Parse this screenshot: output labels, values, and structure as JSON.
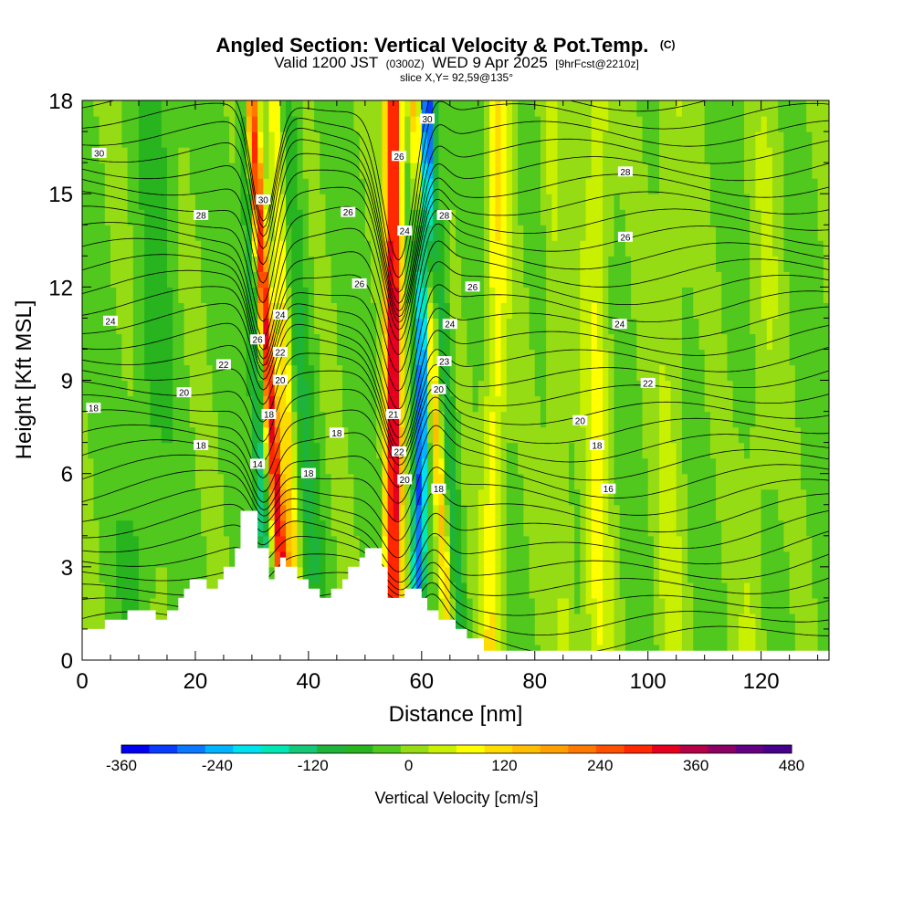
{
  "title": {
    "main": "Angled Section: Vertical Velocity & Pot.Temp.",
    "copyright": "(C)",
    "valid_prefix": "Valid 1200 JST",
    "valid_utc": "(0300Z)",
    "valid_date": "WED 9 Apr 2025",
    "forecast": "[9hrFcst@2210z]",
    "slice": "slice X,Y= 92,59@135°"
  },
  "chart_data": {
    "type": "heatmap",
    "xlabel": "Distance [nm]",
    "ylabel": "Height [Kft MSL]",
    "xlim": [
      0,
      132
    ],
    "ylim": [
      0,
      18
    ],
    "xticks": [
      0,
      20,
      40,
      60,
      80,
      100,
      120
    ],
    "yticks": [
      0,
      3,
      6,
      9,
      12,
      15,
      18
    ],
    "colorbar": {
      "title": "Vertical Velocity [cm/s]",
      "min": -360,
      "max": 480,
      "step": 40,
      "tick_labels": [
        "-360",
        "-240",
        "-120",
        "0",
        "120",
        "240",
        "360",
        "480"
      ],
      "tick_values": [
        -360,
        -240,
        -120,
        0,
        120,
        240,
        360,
        480
      ],
      "colors": [
        "#0000f0",
        "#0a3cff",
        "#0a78ff",
        "#00b4ff",
        "#00e1f0",
        "#00e6b4",
        "#14c878",
        "#1eb43c",
        "#28b41e",
        "#50c81e",
        "#96dc14",
        "#c8f000",
        "#ffff00",
        "#ffdc00",
        "#ffbe00",
        "#ffa000",
        "#ff7800",
        "#ff5000",
        "#ff2800",
        "#e6001e",
        "#b40046",
        "#8c0064",
        "#640082",
        "#46008c"
      ]
    },
    "terrain_kft": [
      [
        0,
        1.0
      ],
      [
        4,
        1.0
      ],
      [
        4,
        1.3
      ],
      [
        8,
        1.3
      ],
      [
        8,
        1.6
      ],
      [
        13,
        1.6
      ],
      [
        13,
        1.3
      ],
      [
        15,
        1.3
      ],
      [
        15,
        1.6
      ],
      [
        17,
        1.6
      ],
      [
        17,
        2.0
      ],
      [
        18,
        2.0
      ],
      [
        18,
        2.3
      ],
      [
        19,
        2.3
      ],
      [
        19,
        2.6
      ],
      [
        22,
        2.6
      ],
      [
        22,
        2.3
      ],
      [
        24,
        2.3
      ],
      [
        24,
        2.6
      ],
      [
        25,
        2.6
      ],
      [
        25,
        3.0
      ],
      [
        27,
        3.0
      ],
      [
        27,
        3.6
      ],
      [
        28,
        3.6
      ],
      [
        28,
        4.8
      ],
      [
        31,
        4.8
      ],
      [
        31,
        3.6
      ],
      [
        33,
        3.6
      ],
      [
        33,
        2.6
      ],
      [
        34,
        2.6
      ],
      [
        34,
        3.0
      ],
      [
        35,
        3.0
      ],
      [
        35,
        3.3
      ],
      [
        36,
        3.3
      ],
      [
        36,
        3.0
      ],
      [
        38,
        3.0
      ],
      [
        38,
        2.6
      ],
      [
        40,
        2.6
      ],
      [
        40,
        2.3
      ],
      [
        42,
        2.3
      ],
      [
        42,
        2.0
      ],
      [
        44,
        2.0
      ],
      [
        44,
        2.3
      ],
      [
        46,
        2.3
      ],
      [
        46,
        2.6
      ],
      [
        47,
        2.6
      ],
      [
        47,
        3.0
      ],
      [
        49,
        3.0
      ],
      [
        49,
        3.3
      ],
      [
        50,
        3.3
      ],
      [
        50,
        3.6
      ],
      [
        53,
        3.6
      ],
      [
        53,
        3.0
      ],
      [
        54,
        3.0
      ],
      [
        54,
        2.0
      ],
      [
        57,
        2.0
      ],
      [
        57,
        2.3
      ],
      [
        60,
        2.3
      ],
      [
        60,
        2.0
      ],
      [
        61,
        2.0
      ],
      [
        61,
        1.6
      ],
      [
        63,
        1.6
      ],
      [
        63,
        1.3
      ],
      [
        66,
        1.3
      ],
      [
        66,
        1.0
      ],
      [
        68,
        1.0
      ],
      [
        68,
        0.7
      ],
      [
        71,
        0.7
      ],
      [
        71,
        0.3
      ],
      [
        132,
        0.3
      ]
    ],
    "potential_temperature_labels": [
      {
        "text": "30",
        "x": 3,
        "y": 16.3
      },
      {
        "text": "28",
        "x": 21,
        "y": 14.3
      },
      {
        "text": "24",
        "x": 5,
        "y": 10.9
      },
      {
        "text": "22",
        "x": 25,
        "y": 9.5
      },
      {
        "text": "20",
        "x": 18,
        "y": 8.6
      },
      {
        "text": "18",
        "x": 2,
        "y": 8.1
      },
      {
        "text": "18",
        "x": 21,
        "y": 6.9
      },
      {
        "text": "30",
        "x": 32,
        "y": 14.8
      },
      {
        "text": "24",
        "x": 35,
        "y": 11.1
      },
      {
        "text": "26",
        "x": 31,
        "y": 10.3
      },
      {
        "text": "22",
        "x": 35,
        "y": 9.9
      },
      {
        "text": "20",
        "x": 35,
        "y": 9.0
      },
      {
        "text": "18",
        "x": 33,
        "y": 7.9
      },
      {
        "text": "14",
        "x": 31,
        "y": 6.3
      },
      {
        "text": "18",
        "x": 40,
        "y": 6.0
      },
      {
        "text": "18",
        "x": 45,
        "y": 7.3
      },
      {
        "text": "26",
        "x": 47,
        "y": 14.4
      },
      {
        "text": "26",
        "x": 49,
        "y": 12.1
      },
      {
        "text": "26",
        "x": 56,
        "y": 16.2
      },
      {
        "text": "24",
        "x": 57,
        "y": 13.8
      },
      {
        "text": "21",
        "x": 55,
        "y": 7.9
      },
      {
        "text": "22",
        "x": 56,
        "y": 6.7
      },
      {
        "text": "20",
        "x": 57,
        "y": 5.8
      },
      {
        "text": "30",
        "x": 61,
        "y": 17.4
      },
      {
        "text": "28",
        "x": 64,
        "y": 14.3
      },
      {
        "text": "26",
        "x": 69,
        "y": 12.0
      },
      {
        "text": "24",
        "x": 65,
        "y": 10.8
      },
      {
        "text": "23",
        "x": 64,
        "y": 9.6
      },
      {
        "text": "20",
        "x": 63,
        "y": 8.7
      },
      {
        "text": "18",
        "x": 63,
        "y": 5.5
      },
      {
        "text": "28",
        "x": 96,
        "y": 15.7
      },
      {
        "text": "26",
        "x": 96,
        "y": 13.6
      },
      {
        "text": "24",
        "x": 95,
        "y": 10.8
      },
      {
        "text": "22",
        "x": 100,
        "y": 8.9
      },
      {
        "text": "20",
        "x": 88,
        "y": 7.7
      },
      {
        "text": "18",
        "x": 91,
        "y": 6.9
      },
      {
        "text": "16",
        "x": 93,
        "y": 5.5
      }
    ]
  }
}
